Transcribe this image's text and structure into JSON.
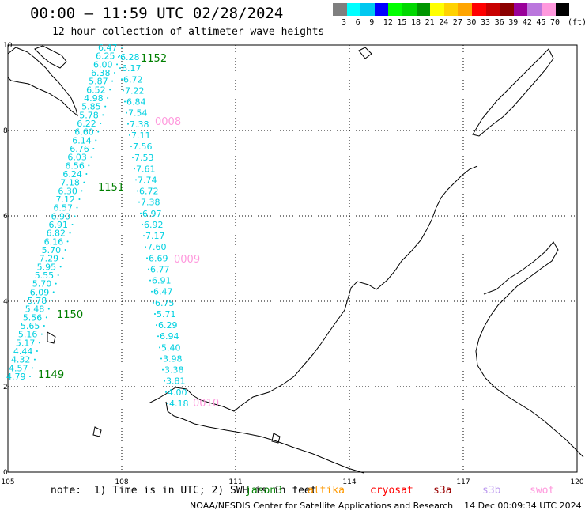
{
  "header": {
    "title": "00:00 – 11:59 UTC 02/28/2024",
    "subtitle": "12 hour collection of altimeter wave heights"
  },
  "legend": {
    "colors": [
      "#7f7f7f",
      "#00ffff",
      "#00c8f0",
      "#0000ff",
      "#00ff00",
      "#00d800",
      "#009600",
      "#ffff00",
      "#ffd200",
      "#ffa500",
      "#ff0000",
      "#c80000",
      "#8b0000",
      "#990099",
      "#bb77dd",
      "#ff99dd",
      "#000000"
    ],
    "labels": [
      "3",
      "6",
      "9",
      "12",
      "15",
      "18",
      "21",
      "24",
      "27",
      "30",
      "33",
      "36",
      "39",
      "42",
      "45",
      "70"
    ],
    "unit": "(ft)"
  },
  "axes": {
    "x_ticks": [
      "105",
      "108",
      "111",
      "114",
      "117",
      "120"
    ],
    "y_ticks": [
      "0",
      "2",
      "4",
      "6",
      "8",
      "10"
    ]
  },
  "passes": {
    "west_values": [
      "6.47",
      "6.25",
      "6.00",
      "6.38",
      "5.87",
      "6.52",
      "4.98",
      "5.85",
      "5.78",
      "6.22",
      "6.60",
      "6.14",
      "6.76",
      "6.03",
      "6.56",
      "6.24",
      "7.18",
      "6.30",
      "7.12",
      "6.57",
      "6.90",
      "6.91",
      "6.82",
      "6.16",
      "5.70",
      "7.29",
      "5.95",
      "5.55",
      "5.70",
      "6.09",
      "5.78",
      "5.48",
      "5.56",
      "5.65",
      "5.16",
      "5.17",
      "4.44",
      "4.32",
      "4.57",
      "4.79"
    ],
    "east_values": [
      "6.28",
      "6.17",
      "6.72",
      "7.22",
      "6.84",
      "7.54",
      "7.38",
      "7.11",
      "7.56",
      "7.53",
      "7.61",
      "7.74",
      "6.72",
      "7.38",
      "6.97",
      "6.92",
      "7.17",
      "7.60",
      "6.69",
      "6.77",
      "6.91",
      "6.47",
      "6.75",
      "5.71",
      "6.29",
      "6.94",
      "5.40",
      "3.98",
      "3.38",
      "3.81",
      "4.00",
      "4.18"
    ],
    "labels": [
      {
        "text": "1152",
        "color": "#007f00"
      },
      {
        "text": "0008",
        "color": "#ff99dd"
      },
      {
        "text": "1151",
        "color": "#007f00"
      },
      {
        "text": "0009",
        "color": "#ff99dd"
      },
      {
        "text": "1150",
        "color": "#007f00"
      },
      {
        "text": "1149",
        "color": "#007f00"
      },
      {
        "text": "0010",
        "color": "#ff99dd"
      }
    ]
  },
  "footer": {
    "note": "note:  1) Time is in UTC; 2) SWH is in feet",
    "missions": [
      {
        "name": "jason3",
        "color": "#007f00"
      },
      {
        "name": "altika",
        "color": "#ff9900"
      },
      {
        "name": "cryosat",
        "color": "#ff0000"
      },
      {
        "name": "s3a",
        "color": "#990000"
      },
      {
        "name": "s3b",
        "color": "#bb99ee"
      },
      {
        "name": "swot",
        "color": "#ff99dd"
      }
    ],
    "credit": "NOAA/NESDIS Center for Satellite Applications and Research    14 Dec 00:09:34 UTC 2024"
  }
}
